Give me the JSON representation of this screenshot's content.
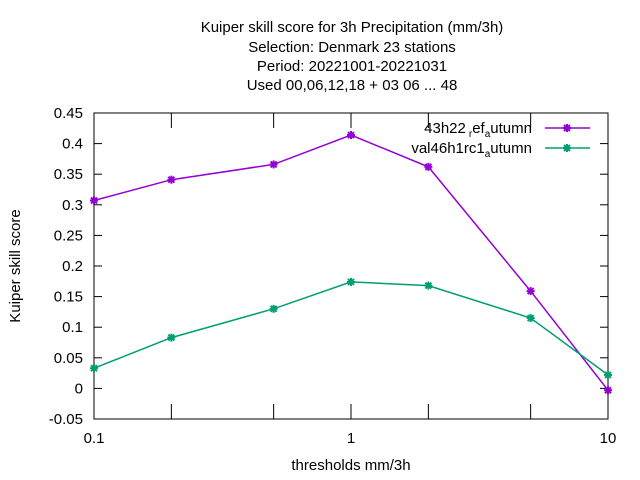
{
  "chart_data": {
    "type": "line",
    "title_lines": [
      "Kuiper skill score  for 3h Precipitation (mm/3h)",
      "Selection: Denmark     23 stations",
      "Period: 20221001-20221031",
      "Used  00,06,12,18  + 03 06 ... 48"
    ],
    "xlabel": "thresholds mm/3h",
    "ylabel": "Kuiper skill score",
    "xscale": "log",
    "xlim": [
      0.1,
      10
    ],
    "ylim": [
      -0.05,
      0.45
    ],
    "x_tick_labels": [
      "0.1",
      "1",
      "10"
    ],
    "y_tick_labels": [
      "-0.05",
      "0",
      "0.05",
      "0.1",
      "0.15",
      "0.2",
      "0.25",
      "0.3",
      "0.35",
      "0.4",
      "0.45"
    ],
    "x": [
      0.1,
      0.2,
      0.5,
      1,
      2,
      5,
      10
    ],
    "legend_position": "top-right",
    "grid": false,
    "series": [
      {
        "name": "43h22_ref_autumn",
        "legend_label": {
          "a": "43h22",
          "b": "r",
          "c": "ef",
          "d": "a",
          "e": "utumn"
        },
        "color": "#9400d3",
        "values": [
          0.307,
          0.341,
          0.366,
          0.414,
          0.362,
          0.159,
          -0.003
        ]
      },
      {
        "name": "val46h1rc1_autumn",
        "legend_label": {
          "a": "val46h1rc1",
          "b": "a",
          "c": "utumn"
        },
        "color": "#009e73",
        "values": [
          0.033,
          0.083,
          0.13,
          0.174,
          0.168,
          0.115,
          0.022
        ]
      }
    ]
  }
}
